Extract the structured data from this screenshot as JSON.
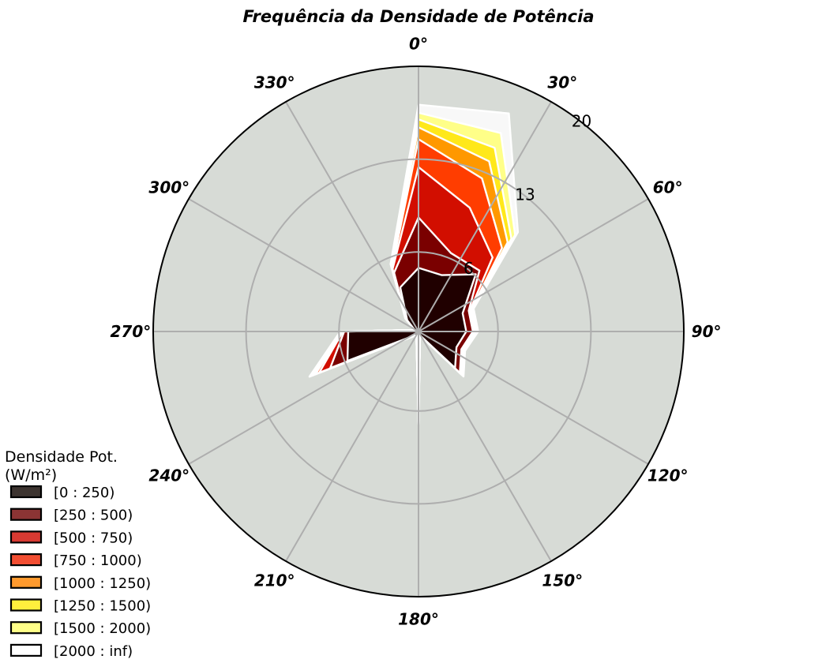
{
  "chart_data": {
    "type": "polar-stacked-area",
    "title": "Frequência da Densidade de Potência",
    "angle_labels": [
      "0°",
      "30°",
      "60°",
      "90°",
      "120°",
      "150°",
      "180°",
      "210°",
      "240°",
      "270°",
      "300°",
      "330°"
    ],
    "radial_ticks": [
      6,
      13,
      20
    ],
    "rlim": [
      0,
      20
    ],
    "directions_deg": [
      0,
      22.5,
      45,
      67.5,
      90,
      112.5,
      135,
      157.5,
      180,
      202.5,
      225,
      247.5,
      270,
      292.5,
      315,
      337.5
    ],
    "legend": {
      "title_line1": "Densidade Pot.",
      "title_line2": "(W/m²)",
      "placement": "lower-left"
    },
    "series": [
      {
        "name": "[0 : 250)",
        "color": "#200000",
        "legend_color": "#3d3430",
        "values": [
          4.8,
          4.6,
          6.1,
          3.6,
          3.6,
          3.1,
          3.9,
          0.3,
          6.0,
          0.3,
          0.4,
          5.8,
          5.3,
          0.3,
          1.2,
          3.6
        ]
      },
      {
        "name": "[250 : 500)",
        "color": "#7a0000",
        "legend_color": "#8b3434",
        "values": [
          8.6,
          6.4,
          6.5,
          4.1,
          4.1,
          3.5,
          4.4,
          0.3,
          6.2,
          0.3,
          0.5,
          7.2,
          5.6,
          0.3,
          1.3,
          4.8
        ]
      },
      {
        "name": "[500 : 750)",
        "color": "#d20e00",
        "legend_color": "#d83a32",
        "values": [
          12.4,
          10.1,
          7.9,
          4.2,
          4.2,
          3.6,
          4.5,
          0.3,
          6.5,
          0.4,
          0.5,
          8.1,
          5.7,
          0.3,
          1.4,
          5.1
        ]
      },
      {
        "name": "[750 : 1000)",
        "color": "#ff3d00",
        "legend_color": "#f24e32",
        "values": [
          14.5,
          12.5,
          8.9,
          4.3,
          4.3,
          3.7,
          4.6,
          0.3,
          6.6,
          0.4,
          0.5,
          8.4,
          5.7,
          0.3,
          1.4,
          5.2
        ]
      },
      {
        "name": "[1000 : 1250)",
        "color": "#ff9800",
        "legend_color": "#ff9a2e",
        "values": [
          15.4,
          13.9,
          9.5,
          4.3,
          4.3,
          3.7,
          4.6,
          0.3,
          6.7,
          0.4,
          0.5,
          8.6,
          5.8,
          0.3,
          1.4,
          5.3
        ]
      },
      {
        "name": "[1250 : 1500)",
        "color": "#ffe81a",
        "legend_color": "#ffef3d",
        "values": [
          16.0,
          15.0,
          9.9,
          4.4,
          4.4,
          3.7,
          4.7,
          0.3,
          6.8,
          0.4,
          0.5,
          8.7,
          5.8,
          0.3,
          1.4,
          5.4
        ]
      },
      {
        "name": "[1500 : 2000)",
        "color": "#ffff88",
        "legend_color": "#ffff88",
        "values": [
          16.5,
          16.2,
          10.3,
          4.4,
          4.4,
          3.7,
          4.7,
          0.3,
          6.9,
          0.4,
          0.5,
          8.8,
          5.8,
          0.3,
          1.4,
          5.4
        ]
      },
      {
        "name": "[2000 : inf)",
        "color": "#f8f8f8",
        "legend_color": "#ffffff",
        "values": [
          17.1,
          17.8,
          10.6,
          4.5,
          4.5,
          3.8,
          4.8,
          0.3,
          7.0,
          0.4,
          0.5,
          8.9,
          5.9,
          0.3,
          1.4,
          5.5
        ]
      }
    ],
    "grid": true,
    "background_color": "#d7dbd6",
    "grid_color": "#aeaeae"
  }
}
